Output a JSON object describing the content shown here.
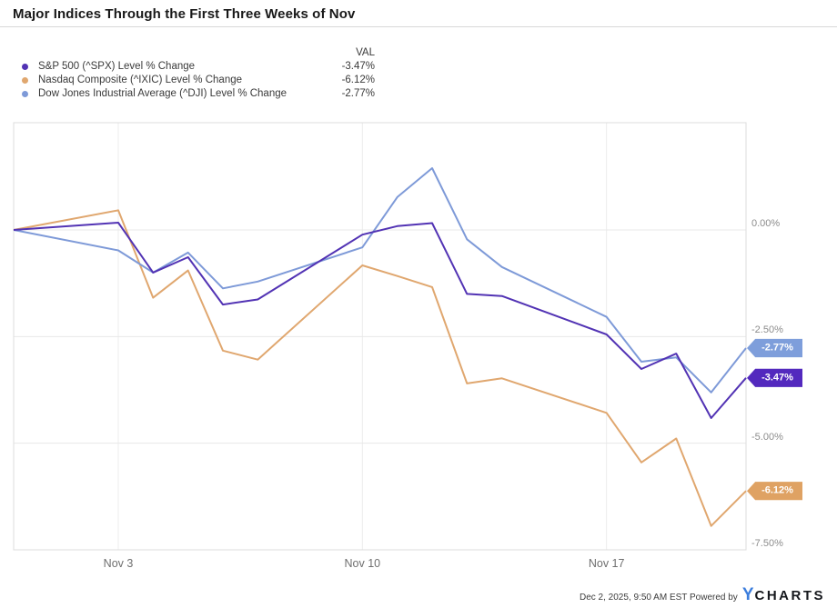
{
  "header": {
    "title": "Major Indices Through the First Three Weeks of Nov"
  },
  "legend": {
    "val_header": "VAL",
    "items": [
      {
        "label": "S&P 500 (^SPX) Level % Change",
        "val": "-3.47%",
        "color": "#5233b4"
      },
      {
        "label": "Nasdaq Composite (^IXIC) Level % Change",
        "val": "-6.12%",
        "color": "#e0a76f"
      },
      {
        "label": "Dow Jones Industrial Average (^DJI) Level % Change",
        "val": "-2.77%",
        "color": "#7e9ad8"
      }
    ]
  },
  "chart_data": {
    "type": "line",
    "title": "Major Indices Through the First Three Weeks of Nov",
    "x_dates": [
      "Oct 31",
      "Nov 3",
      "Nov 4",
      "Nov 5",
      "Nov 6",
      "Nov 7",
      "Nov 10",
      "Nov 11",
      "Nov 12",
      "Nov 13",
      "Nov 14",
      "Nov 17",
      "Nov 18",
      "Nov 19",
      "Nov 20",
      "Nov 21"
    ],
    "x_day_offsets": [
      0,
      3,
      4,
      5,
      6,
      7,
      10,
      11,
      12,
      13,
      14,
      17,
      18,
      19,
      20,
      21
    ],
    "x_range_days": 21,
    "series": [
      {
        "name": "S&P 500 (^SPX) Level % Change",
        "color": "#5233b4",
        "tag_color": "#5329be",
        "end_label": "-3.47%",
        "z": 3,
        "values": [
          0,
          0.17,
          -1.0,
          -0.64,
          -1.75,
          -1.63,
          -0.11,
          0.09,
          0.16,
          -1.5,
          -1.55,
          -2.45,
          -3.26,
          -2.9,
          -4.41,
          -3.47
        ]
      },
      {
        "name": "Nasdaq Composite (^IXIC) Level % Change",
        "color": "#e0a76f",
        "tag_color": "#dfa263",
        "end_label": "-6.12%",
        "z": 1,
        "values": [
          0,
          0.46,
          -1.59,
          -0.95,
          -2.83,
          -3.04,
          -0.83,
          -1.08,
          -1.34,
          -3.6,
          -3.48,
          -4.29,
          -5.45,
          -4.89,
          -6.94,
          -6.12
        ]
      },
      {
        "name": "Dow Jones Industrial Average (^DJI) Level % Change",
        "color": "#7e9ad8",
        "tag_color": "#7e9edb",
        "end_label": "-2.77%",
        "z": 2,
        "values": [
          0,
          -0.48,
          -1.0,
          -0.53,
          -1.37,
          -1.21,
          -0.41,
          0.77,
          1.45,
          -0.22,
          -0.87,
          -2.04,
          -3.09,
          -2.99,
          -3.81,
          -2.77
        ]
      }
    ],
    "y_axis": {
      "ticks": [
        0,
        -2.5,
        -5,
        -7.5
      ],
      "tick_labels": [
        "0.00%",
        "-2.50%",
        "-5.00%",
        "-7.50%"
      ],
      "ylim": [
        -7.5,
        2.51
      ],
      "side": "right"
    },
    "x_axis": {
      "tick_days": [
        3,
        10,
        17
      ],
      "tick_labels": [
        "Nov 3",
        "Nov 10",
        "Nov 17"
      ]
    },
    "grid": true,
    "legend_position": "top-left"
  },
  "footer": {
    "timestamp_line": "Dec 2, 2025, 9:50 AM EST Powered by",
    "logo_y": "Y",
    "logo_rest": "CHARTS"
  }
}
